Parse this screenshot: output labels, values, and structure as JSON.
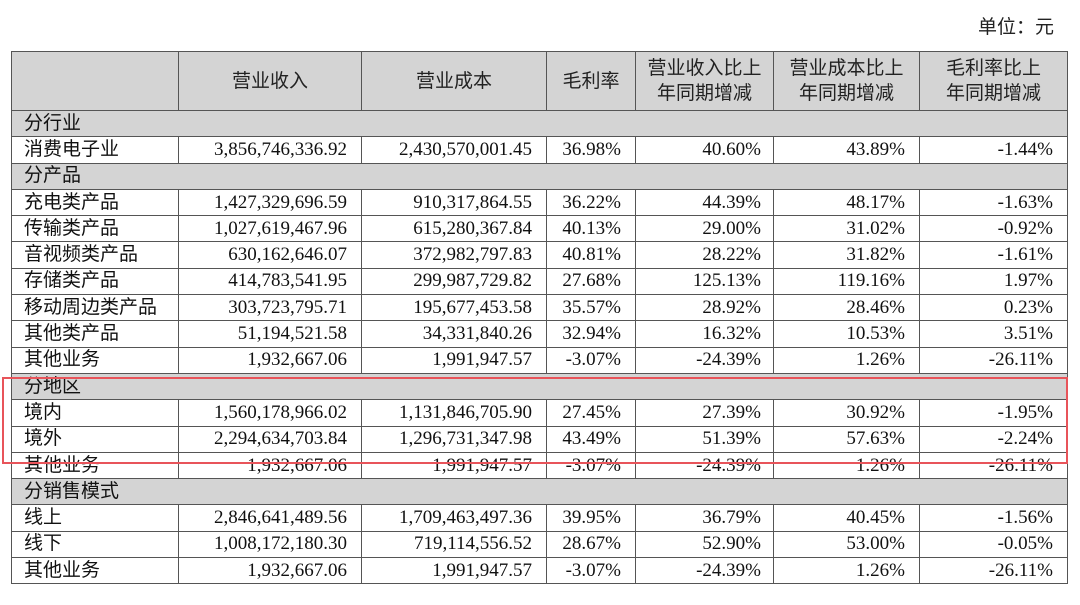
{
  "unit_label": "单位：元",
  "headers": [
    "",
    "营业收入",
    "营业成本",
    "毛利率",
    "营业收入比上\n年同期增减",
    "营业成本比上\n年同期增减",
    "毛利率比上\n年同期增减"
  ],
  "header_lines": {
    "c4": [
      "营业收入比上",
      "年同期增减"
    ],
    "c5": [
      "营业成本比上",
      "年同期增减"
    ],
    "c6": [
      "毛利率比上",
      "年同期增减"
    ]
  },
  "rows": [
    {
      "type": "section",
      "label": "分行业"
    },
    {
      "type": "data",
      "label": "消费电子业",
      "revenue": "3,856,746,336.92",
      "cost": "2,430,570,001.45",
      "margin": "36.98%",
      "rev_yoy": "40.60%",
      "cost_yoy": "43.89%",
      "margin_yoy": "-1.44%"
    },
    {
      "type": "section",
      "label": "分产品"
    },
    {
      "type": "data",
      "label": "充电类产品",
      "revenue": "1,427,329,696.59",
      "cost": "910,317,864.55",
      "margin": "36.22%",
      "rev_yoy": "44.39%",
      "cost_yoy": "48.17%",
      "margin_yoy": "-1.63%"
    },
    {
      "type": "data",
      "label": "传输类产品",
      "revenue": "1,027,619,467.96",
      "cost": "615,280,367.84",
      "margin": "40.13%",
      "rev_yoy": "29.00%",
      "cost_yoy": "31.02%",
      "margin_yoy": "-0.92%"
    },
    {
      "type": "data",
      "label": "音视频类产品",
      "revenue": "630,162,646.07",
      "cost": "372,982,797.83",
      "margin": "40.81%",
      "rev_yoy": "28.22%",
      "cost_yoy": "31.82%",
      "margin_yoy": "-1.61%"
    },
    {
      "type": "data",
      "label": "存储类产品",
      "revenue": "414,783,541.95",
      "cost": "299,987,729.82",
      "margin": "27.68%",
      "rev_yoy": "125.13%",
      "cost_yoy": "119.16%",
      "margin_yoy": "1.97%"
    },
    {
      "type": "data",
      "label": "移动周边类产品",
      "revenue": "303,723,795.71",
      "cost": "195,677,453.58",
      "margin": "35.57%",
      "rev_yoy": "28.92%",
      "cost_yoy": "28.46%",
      "margin_yoy": "0.23%"
    },
    {
      "type": "data",
      "label": "其他类产品",
      "revenue": "51,194,521.58",
      "cost": "34,331,840.26",
      "margin": "32.94%",
      "rev_yoy": "16.32%",
      "cost_yoy": "10.53%",
      "margin_yoy": "3.51%"
    },
    {
      "type": "data",
      "label": "其他业务",
      "revenue": "1,932,667.06",
      "cost": "1,991,947.57",
      "margin": "-3.07%",
      "rev_yoy": "-24.39%",
      "cost_yoy": "1.26%",
      "margin_yoy": "-26.11%"
    },
    {
      "type": "section",
      "label": "分地区"
    },
    {
      "type": "data",
      "label": "境内",
      "revenue": "1,560,178,966.02",
      "cost": "1,131,846,705.90",
      "margin": "27.45%",
      "rev_yoy": "27.39%",
      "cost_yoy": "30.92%",
      "margin_yoy": "-1.95%"
    },
    {
      "type": "data",
      "label": "境外",
      "revenue": "2,294,634,703.84",
      "cost": "1,296,731,347.98",
      "margin": "43.49%",
      "rev_yoy": "51.39%",
      "cost_yoy": "57.63%",
      "margin_yoy": "-2.24%"
    },
    {
      "type": "data",
      "label": "其他业务",
      "revenue": "1,932,667.06",
      "cost": "1,991,947.57",
      "margin": "-3.07%",
      "rev_yoy": "-24.39%",
      "cost_yoy": "1.26%",
      "margin_yoy": "-26.11%"
    },
    {
      "type": "section",
      "label": "分销售模式"
    },
    {
      "type": "data",
      "label": "线上",
      "revenue": "2,846,641,489.56",
      "cost": "1,709,463,497.36",
      "margin": "39.95%",
      "rev_yoy": "36.79%",
      "cost_yoy": "40.45%",
      "margin_yoy": "-1.56%"
    },
    {
      "type": "data",
      "label": "线下",
      "revenue": "1,008,172,180.30",
      "cost": "719,114,556.52",
      "margin": "28.67%",
      "rev_yoy": "52.90%",
      "cost_yoy": "53.00%",
      "margin_yoy": "-0.05%"
    },
    {
      "type": "data",
      "label": "其他业务",
      "revenue": "1,932,667.06",
      "cost": "1,991,947.57",
      "margin": "-3.07%",
      "rev_yoy": "-24.39%",
      "cost_yoy": "1.26%",
      "margin_yoy": "-26.11%"
    }
  ],
  "highlight": {
    "color": "#e8545a",
    "covers": "分地区"
  },
  "colors": {
    "header_bg": "#d4d4d4",
    "section_bg": "#d4d4d4",
    "border": "#555555"
  }
}
